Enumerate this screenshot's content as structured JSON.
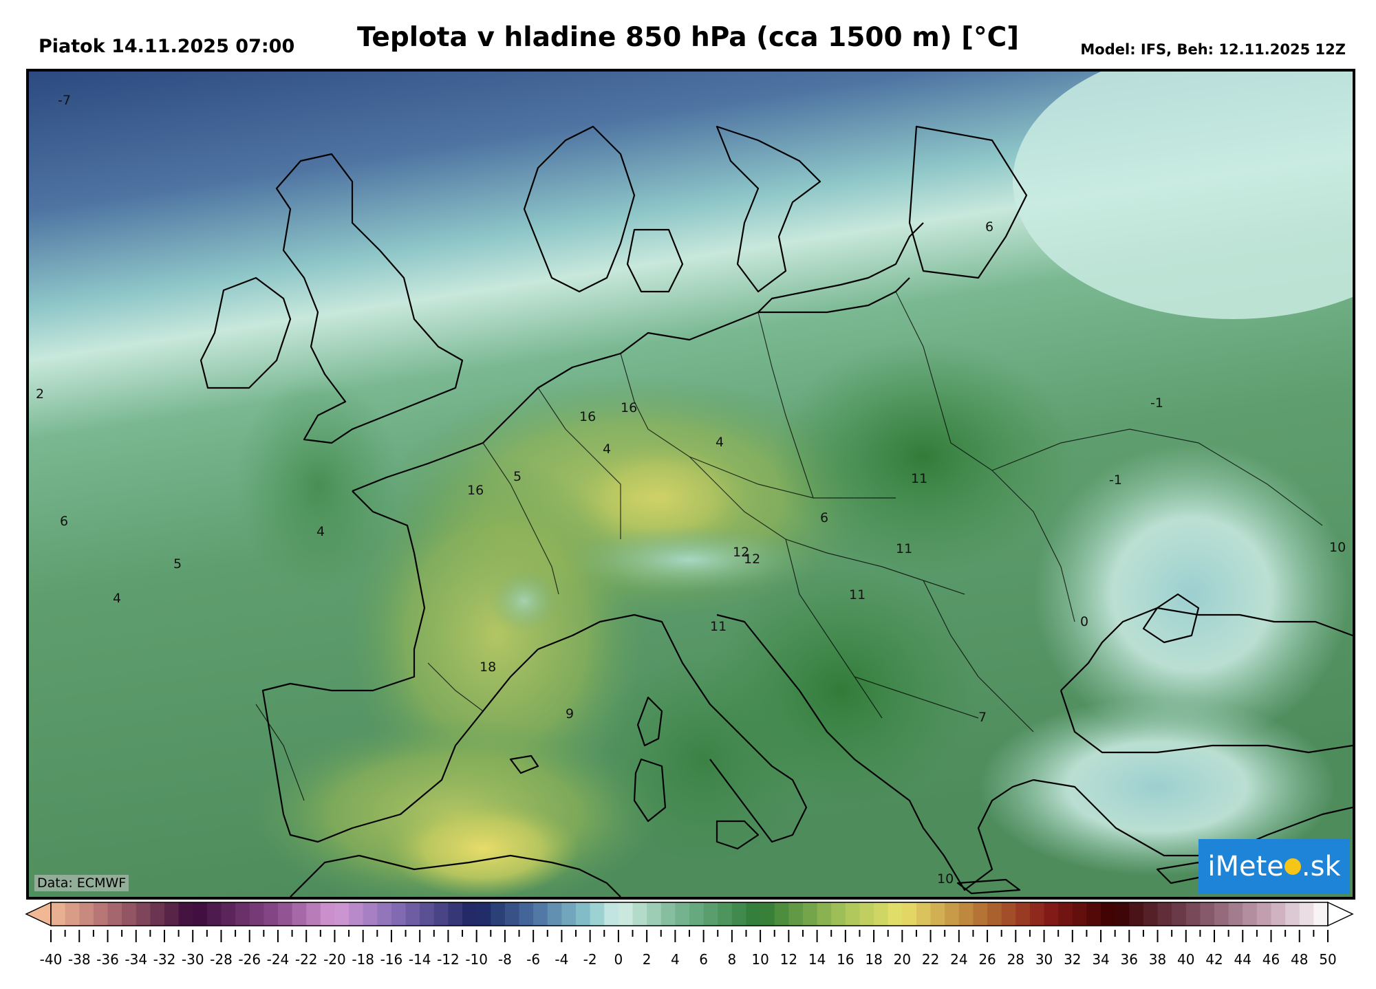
{
  "header": {
    "date_label": "Piatok 14.11.2025 07:00",
    "title": "Teplota v hladine 850 hPa (cca 1500 m) [°C]",
    "model_label": "Model: IFS, Beh: 12.11.2025 12Z"
  },
  "map": {
    "data_credit": "Data: ECMWF",
    "logo_text_a": "iMete",
    "logo_text_b": "sk",
    "values": [
      {
        "label": "-7",
        "region": "north-atlantic"
      },
      {
        "label": "2",
        "region": "atlantic-west"
      },
      {
        "label": "6",
        "region": "atlantic-southwest"
      },
      {
        "label": "5",
        "region": "atlantic-off-portugal"
      },
      {
        "label": "4",
        "region": "atlantic-off-portugal-south"
      },
      {
        "label": "4",
        "region": "spain-north"
      },
      {
        "label": "16",
        "region": "france-south"
      },
      {
        "label": "5",
        "region": "massif-central"
      },
      {
        "label": "16",
        "region": "switzerland"
      },
      {
        "label": "16",
        "region": "alps-north"
      },
      {
        "label": "4",
        "region": "alps-west"
      },
      {
        "label": "4",
        "region": "alps-east"
      },
      {
        "label": "12",
        "region": "italy-central"
      },
      {
        "label": "12",
        "region": "italy-central-2"
      },
      {
        "label": "11",
        "region": "italy-south"
      },
      {
        "label": "6",
        "region": "balkans-west"
      },
      {
        "label": "11",
        "region": "balkans-central"
      },
      {
        "label": "11",
        "region": "serbia"
      },
      {
        "label": "11",
        "region": "albania"
      },
      {
        "label": "18",
        "region": "algeria-north"
      },
      {
        "label": "9",
        "region": "north-africa"
      },
      {
        "label": "-1",
        "region": "ukraine-east"
      },
      {
        "label": "-1",
        "region": "crimea"
      },
      {
        "label": "10",
        "region": "caucasus"
      },
      {
        "label": "0",
        "region": "anatolia"
      },
      {
        "label": "7",
        "region": "crete"
      },
      {
        "label": "6",
        "region": "baltic-east"
      },
      {
        "label": "10",
        "region": "libya-coast"
      }
    ]
  },
  "colorbar": {
    "min": -40,
    "max": 50,
    "step": 1,
    "label_step": 2,
    "labels": [
      "-40",
      "-38",
      "-36",
      "-34",
      "-32",
      "-30",
      "-28",
      "-26",
      "-24",
      "-22",
      "-20",
      "-18",
      "-16",
      "-14",
      "-12",
      "-10",
      "-8",
      "-6",
      "-4",
      "-2",
      "0",
      "2",
      "4",
      "6",
      "8",
      "10",
      "12",
      "14",
      "16",
      "18",
      "20",
      "22",
      "24",
      "26",
      "28",
      "30",
      "32",
      "34",
      "36",
      "38",
      "40",
      "42",
      "44",
      "46",
      "48",
      "50"
    ],
    "color_stops": [
      {
        "v": -40,
        "c": "#f0b894"
      },
      {
        "v": -36,
        "c": "#b06e72"
      },
      {
        "v": -30,
        "c": "#3a0b3a"
      },
      {
        "v": -24,
        "c": "#8a4a8a"
      },
      {
        "v": -20,
        "c": "#d49ad4"
      },
      {
        "v": -16,
        "c": "#8a70b8"
      },
      {
        "v": -10,
        "c": "#1a2460"
      },
      {
        "v": -6,
        "c": "#4a6ea0"
      },
      {
        "v": -2,
        "c": "#8ac8cc"
      },
      {
        "v": 0,
        "c": "#d6efe8"
      },
      {
        "v": 4,
        "c": "#7ab896"
      },
      {
        "v": 10,
        "c": "#2e7a34"
      },
      {
        "v": 16,
        "c": "#a8c45a"
      },
      {
        "v": 20,
        "c": "#e8e06a"
      },
      {
        "v": 26,
        "c": "#b06a30"
      },
      {
        "v": 30,
        "c": "#8a1e1a"
      },
      {
        "v": 35,
        "c": "#3a0000"
      },
      {
        "v": 40,
        "c": "#704050"
      },
      {
        "v": 46,
        "c": "#c8a8b8"
      },
      {
        "v": 50,
        "c": "#ffffff"
      }
    ]
  }
}
